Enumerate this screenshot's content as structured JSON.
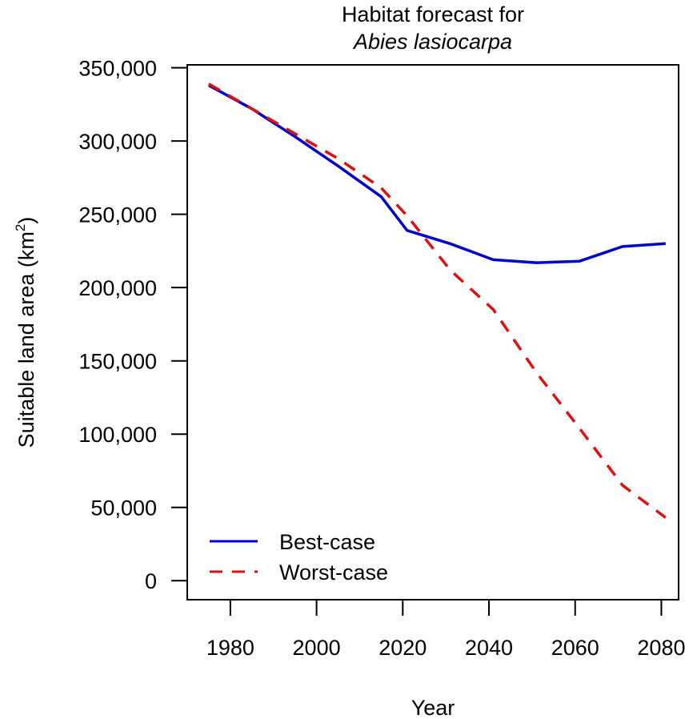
{
  "chart_data": {
    "type": "line",
    "title_line1": "Habitat forecast for",
    "title_line2": "Abies lasiocarpa",
    "xlabel": "Year",
    "ylabel": "Suitable land area (km",
    "ylabel_sup": "2",
    "ylabel_close": ")",
    "xlim": [
      1970,
      2084
    ],
    "ylim": [
      -13000,
      352000
    ],
    "x_ticks": [
      1980,
      2000,
      2020,
      2040,
      2060,
      2080
    ],
    "x_tick_labels": [
      "1980",
      "2000",
      "2020",
      "2040",
      "2060",
      "2080"
    ],
    "y_ticks": [
      0,
      50000,
      100000,
      150000,
      200000,
      250000,
      300000,
      350000
    ],
    "y_tick_labels": [
      "0",
      "50,000",
      "100,000",
      "150,000",
      "200,000",
      "250,000",
      "300,000",
      "350,000"
    ],
    "legend": {
      "position": "bottom-left",
      "entries": [
        "Best-case",
        "Worst-case"
      ]
    },
    "grid": false,
    "series": [
      {
        "name": "Best-case",
        "color": "#0000cc",
        "style": "solid",
        "x": [
          1975,
          1985,
          1995,
          2005,
          2015,
          2021,
          2031,
          2041,
          2051,
          2061,
          2071,
          2081
        ],
        "y": [
          338000,
          322000,
          303000,
          283000,
          262000,
          239000,
          230000,
          219000,
          217000,
          218000,
          228000,
          230000
        ]
      },
      {
        "name": "Worst-case",
        "color": "#dd1111",
        "style": "dashed",
        "x": [
          1975,
          1985,
          1995,
          2005,
          2015,
          2021,
          2031,
          2041,
          2051,
          2061,
          2071,
          2081
        ],
        "y": [
          339000,
          322000,
          305000,
          288000,
          268000,
          249000,
          212000,
          185000,
          142000,
          104000,
          65000,
          43000
        ]
      }
    ]
  }
}
